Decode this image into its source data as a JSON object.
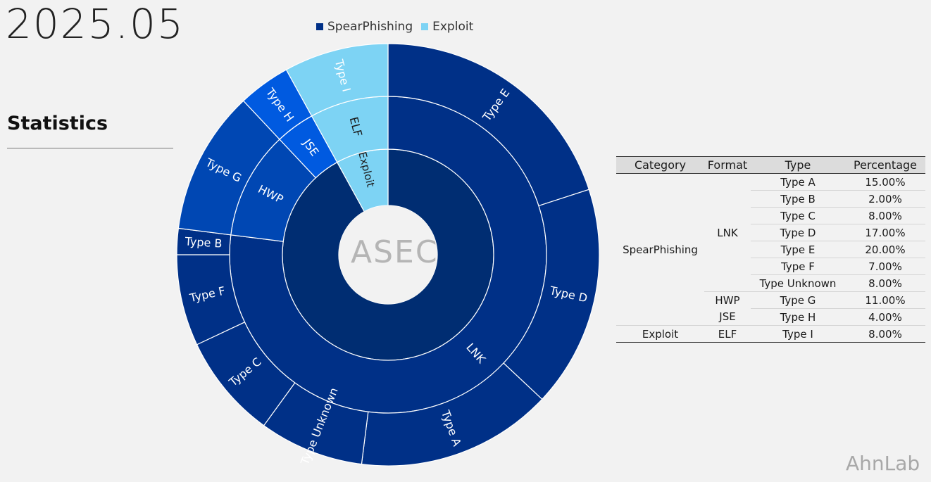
{
  "header": {
    "date": "2025.05",
    "section_title": "Statistics"
  },
  "watermark_text": "ASEC",
  "brand_logo_text": "AhnLab",
  "colors": {
    "background": "#f2f2f2",
    "spearphishing": "#003087",
    "lnk": "#002d72",
    "lnk_outer": "#003087",
    "hwp": "#0047b3",
    "jse": "#005ae0",
    "exploit": "#7dd3f4"
  },
  "chart_data": {
    "type": "sunburst",
    "legend": [
      {
        "name": "SpearPhishing",
        "color": "#003087"
      },
      {
        "name": "Exploit",
        "color": "#7dd3f4"
      }
    ],
    "rings": {
      "category": [
        {
          "label": "",
          "name": "SpearPhishing",
          "value": 92
        },
        {
          "label": "Exploit",
          "name": "Exploit",
          "value": 8
        }
      ],
      "format": [
        {
          "label": "LNK",
          "value": 77,
          "parent": "SpearPhishing"
        },
        {
          "label": "HWP",
          "value": 11,
          "parent": "SpearPhishing"
        },
        {
          "label": "JSE",
          "value": 4,
          "parent": "SpearPhishing"
        },
        {
          "label": "ELF",
          "value": 8,
          "parent": "Exploit"
        }
      ],
      "type": [
        {
          "label": "Type E",
          "value": 20,
          "format": "LNK"
        },
        {
          "label": "Type D",
          "value": 17,
          "format": "LNK"
        },
        {
          "label": "Type A",
          "value": 15,
          "format": "LNK"
        },
        {
          "label": "Type Unknown",
          "value": 8,
          "format": "LNK"
        },
        {
          "label": "Type C",
          "value": 8,
          "format": "LNK"
        },
        {
          "label": "Type F",
          "value": 7,
          "format": "LNK"
        },
        {
          "label": "Type B",
          "value": 2,
          "format": "LNK"
        },
        {
          "label": "Type G",
          "value": 11,
          "format": "HWP"
        },
        {
          "label": "Type H",
          "value": 4,
          "format": "JSE"
        },
        {
          "label": "Type I",
          "value": 8,
          "format": "ELF"
        }
      ]
    }
  },
  "table": {
    "headers": [
      "Category",
      "Format",
      "Type",
      "Percentage"
    ],
    "rows": [
      {
        "category": "SpearPhishing",
        "format": "LNK",
        "type": "Type A",
        "percentage": "15.00%"
      },
      {
        "category": "SpearPhishing",
        "format": "LNK",
        "type": "Type B",
        "percentage": "2.00%"
      },
      {
        "category": "SpearPhishing",
        "format": "LNK",
        "type": "Type C",
        "percentage": "8.00%"
      },
      {
        "category": "SpearPhishing",
        "format": "LNK",
        "type": "Type D",
        "percentage": "17.00%"
      },
      {
        "category": "SpearPhishing",
        "format": "LNK",
        "type": "Type E",
        "percentage": "20.00%"
      },
      {
        "category": "SpearPhishing",
        "format": "LNK",
        "type": "Type F",
        "percentage": "7.00%"
      },
      {
        "category": "SpearPhishing",
        "format": "LNK",
        "type": "Type Unknown",
        "percentage": "8.00%"
      },
      {
        "category": "SpearPhishing",
        "format": "HWP",
        "type": "Type G",
        "percentage": "11.00%"
      },
      {
        "category": "SpearPhishing",
        "format": "JSE",
        "type": "Type H",
        "percentage": "4.00%"
      },
      {
        "category": "Exploit",
        "format": "ELF",
        "type": "Type I",
        "percentage": "8.00%"
      }
    ]
  }
}
